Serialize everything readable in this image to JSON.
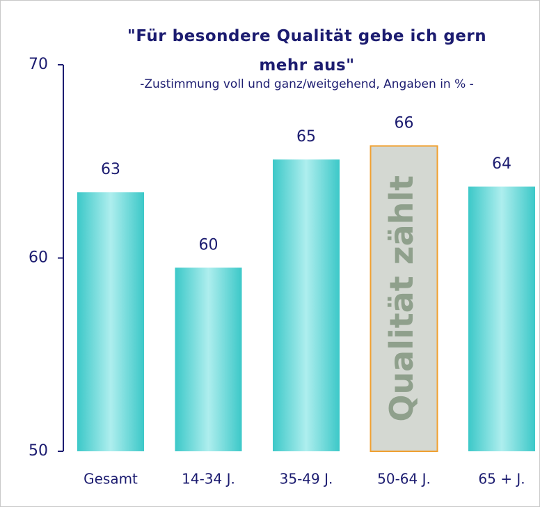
{
  "chart_data": {
    "type": "bar",
    "title": "\"Für besondere Qualität gebe ich gern mehr aus\"",
    "subtitle": "-Zustimmung voll und ganz/weitgehend, Angaben in % -",
    "categories": [
      "Gesamt",
      "14-34 J.",
      "35-49 J.",
      "50-64 J.",
      "65 + J."
    ],
    "values": [
      63.4,
      59.5,
      65.1,
      65.8,
      63.7
    ],
    "value_labels": [
      "63",
      "60",
      "65",
      "66",
      "64"
    ],
    "color": "#3cc8c8",
    "highlight_index": 3,
    "highlight_color": "#f0a030",
    "highlight_text": "Qualität zählt",
    "ylim": [
      50,
      70
    ],
    "yticks": [
      50,
      60,
      70
    ]
  }
}
